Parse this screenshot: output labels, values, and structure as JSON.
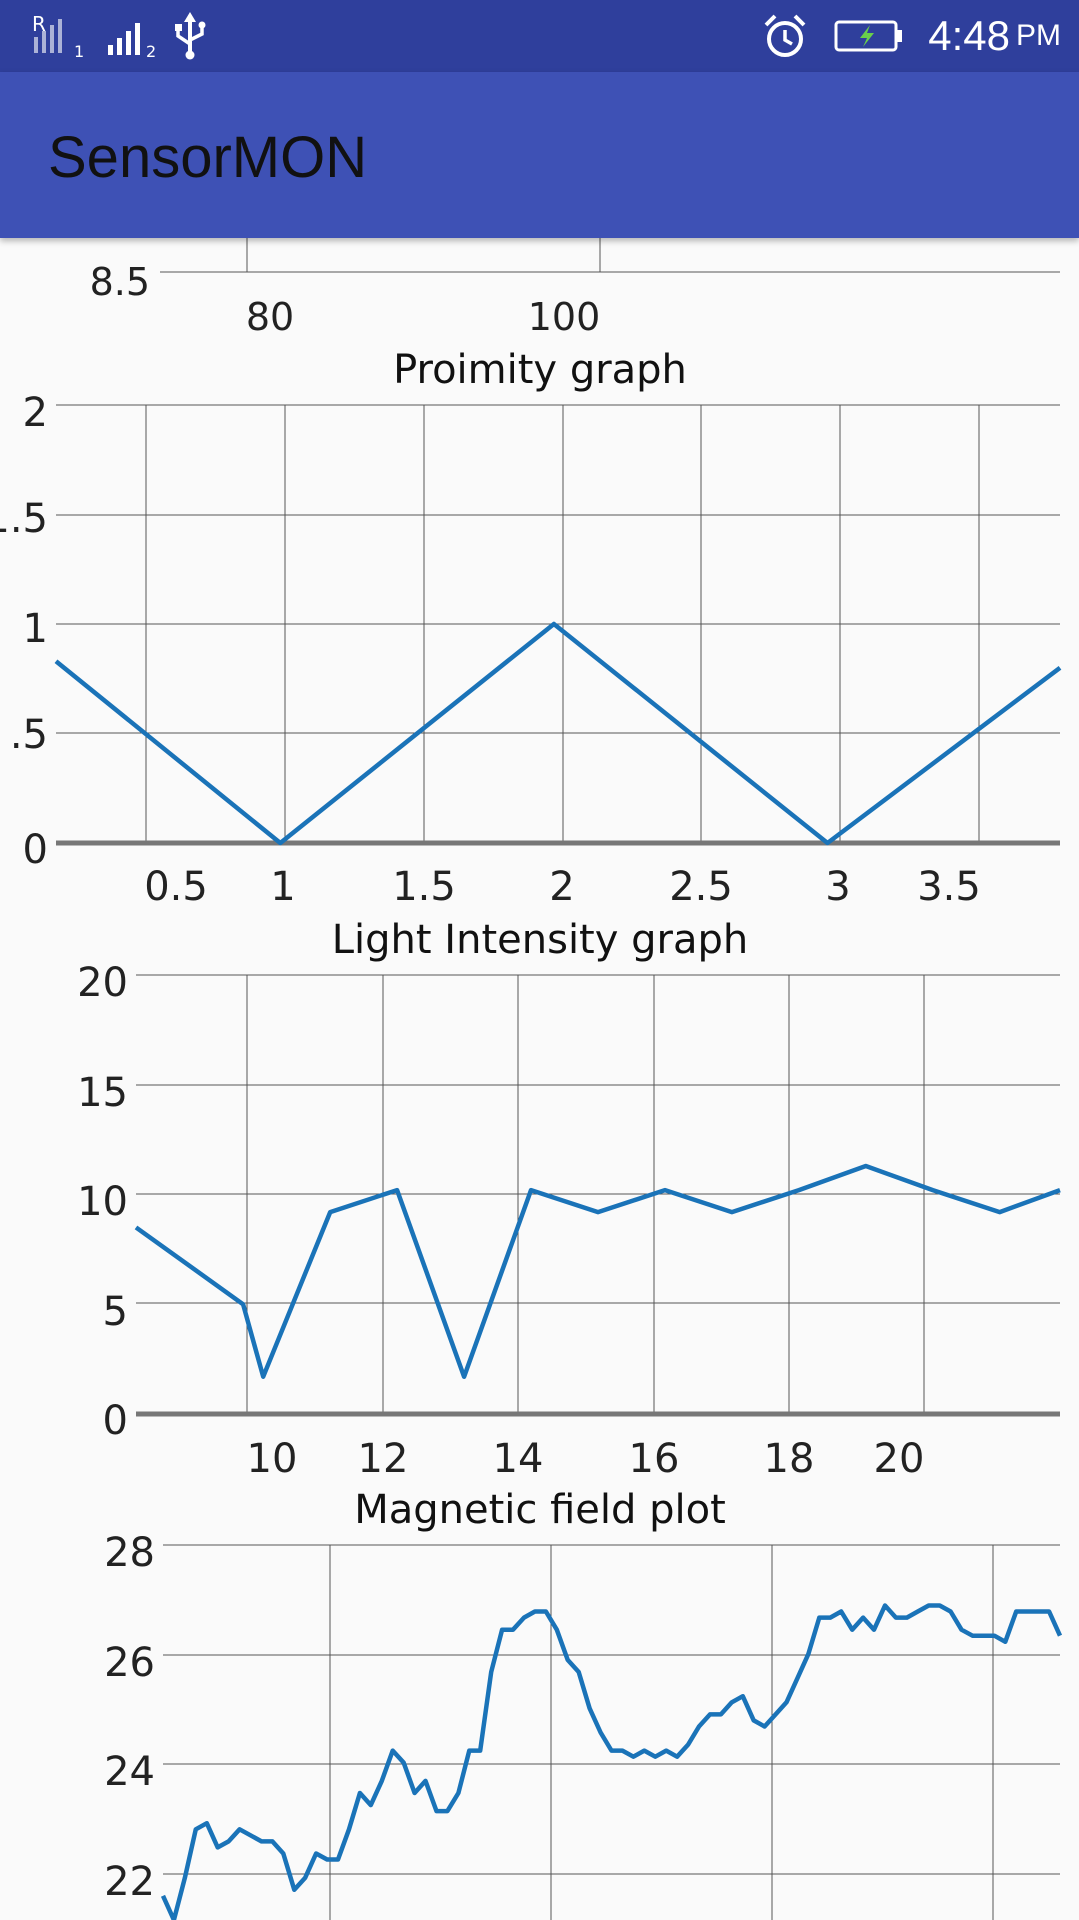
{
  "status_bar": {
    "time": "4:48",
    "ampm": "PM",
    "sim1_label": "R",
    "sim1_index": "1",
    "sim2_index": "2",
    "icons": [
      "roaming-signal-icon",
      "signal-icon",
      "usb-icon",
      "alarm-icon",
      "battery-charging-icon"
    ]
  },
  "app_bar": {
    "title": "SensorMON"
  },
  "colors": {
    "status_bar": "#2f3f9c",
    "app_bar": "#3e51b5",
    "line": "#1a73b8",
    "grid": "#555555",
    "axis": "#777777",
    "background": "#fafafa"
  },
  "chart_data": [
    {
      "type": "line",
      "title": "",
      "xticks": [
        "80",
        "100"
      ],
      "yticks": [
        "8.5"
      ],
      "note": "partially scrolled out of view"
    },
    {
      "type": "line",
      "title": "Proimity graph",
      "xlabel": "",
      "ylabel": "",
      "xlim": [
        0.18,
        3.85
      ],
      "ylim": [
        0,
        2
      ],
      "xticks": [
        "0.5",
        "1",
        "1.5",
        "2",
        "2.5",
        "3",
        "3.5"
      ],
      "yticks": [
        "0",
        ".5",
        "1",
        "1.5",
        "2"
      ],
      "x": [
        0.18,
        1,
        2,
        3,
        3.85
      ],
      "y": [
        0.83,
        0,
        1,
        0,
        0.8
      ],
      "grid": true
    },
    {
      "type": "line",
      "title": "Light Intensity graph",
      "xlabel": "",
      "ylabel": "",
      "xlim": [
        7.1,
        20.9
      ],
      "ylim": [
        0,
        20
      ],
      "xticks": [
        "10",
        "12",
        "14",
        "16",
        "18",
        "20"
      ],
      "yticks": [
        "0",
        "5",
        "10",
        "15",
        "20"
      ],
      "x": [
        7.1,
        8.7,
        9,
        10,
        11,
        12,
        13,
        14,
        15,
        16,
        17,
        18,
        19,
        20,
        20.9
      ],
      "y": [
        8.5,
        5,
        1.7,
        9.2,
        10.2,
        1.7,
        10.2,
        9.2,
        10.2,
        9.2,
        10.2,
        11.3,
        10.2,
        9.2,
        10.2
      ],
      "grid": true
    },
    {
      "type": "line",
      "title": "Magnetic field plot",
      "xlabel": "",
      "ylabel": "",
      "ylim": [
        21.8,
        28
      ],
      "yticks": [
        "22",
        "24",
        "26",
        "28"
      ],
      "y": [
        22.2,
        21.8,
        22.5,
        23.3,
        23.4,
        23.0,
        23.1,
        23.3,
        23.2,
        23.1,
        23.1,
        22.9,
        22.3,
        22.5,
        22.9,
        22.8,
        22.8,
        23.3,
        23.9,
        23.7,
        24.1,
        24.6,
        24.4,
        23.9,
        24.1,
        23.6,
        23.6,
        23.9,
        24.6,
        24.6,
        25.9,
        26.6,
        26.6,
        26.8,
        26.9,
        26.9,
        26.6,
        26.1,
        25.9,
        25.3,
        24.9,
        24.6,
        24.6,
        24.5,
        24.6,
        24.5,
        24.6,
        24.5,
        24.7,
        25.0,
        25.2,
        25.2,
        25.4,
        25.5,
        25.1,
        25.0,
        25.2,
        25.4,
        25.8,
        26.2,
        26.8,
        26.8,
        26.9,
        26.6,
        26.8,
        26.6,
        27.0,
        26.8,
        26.8,
        26.9,
        27.0,
        27.0,
        26.9,
        26.6,
        26.5,
        26.5,
        26.5,
        26.4,
        26.9,
        26.9,
        26.9,
        26.9,
        26.5
      ],
      "grid": true
    }
  ]
}
